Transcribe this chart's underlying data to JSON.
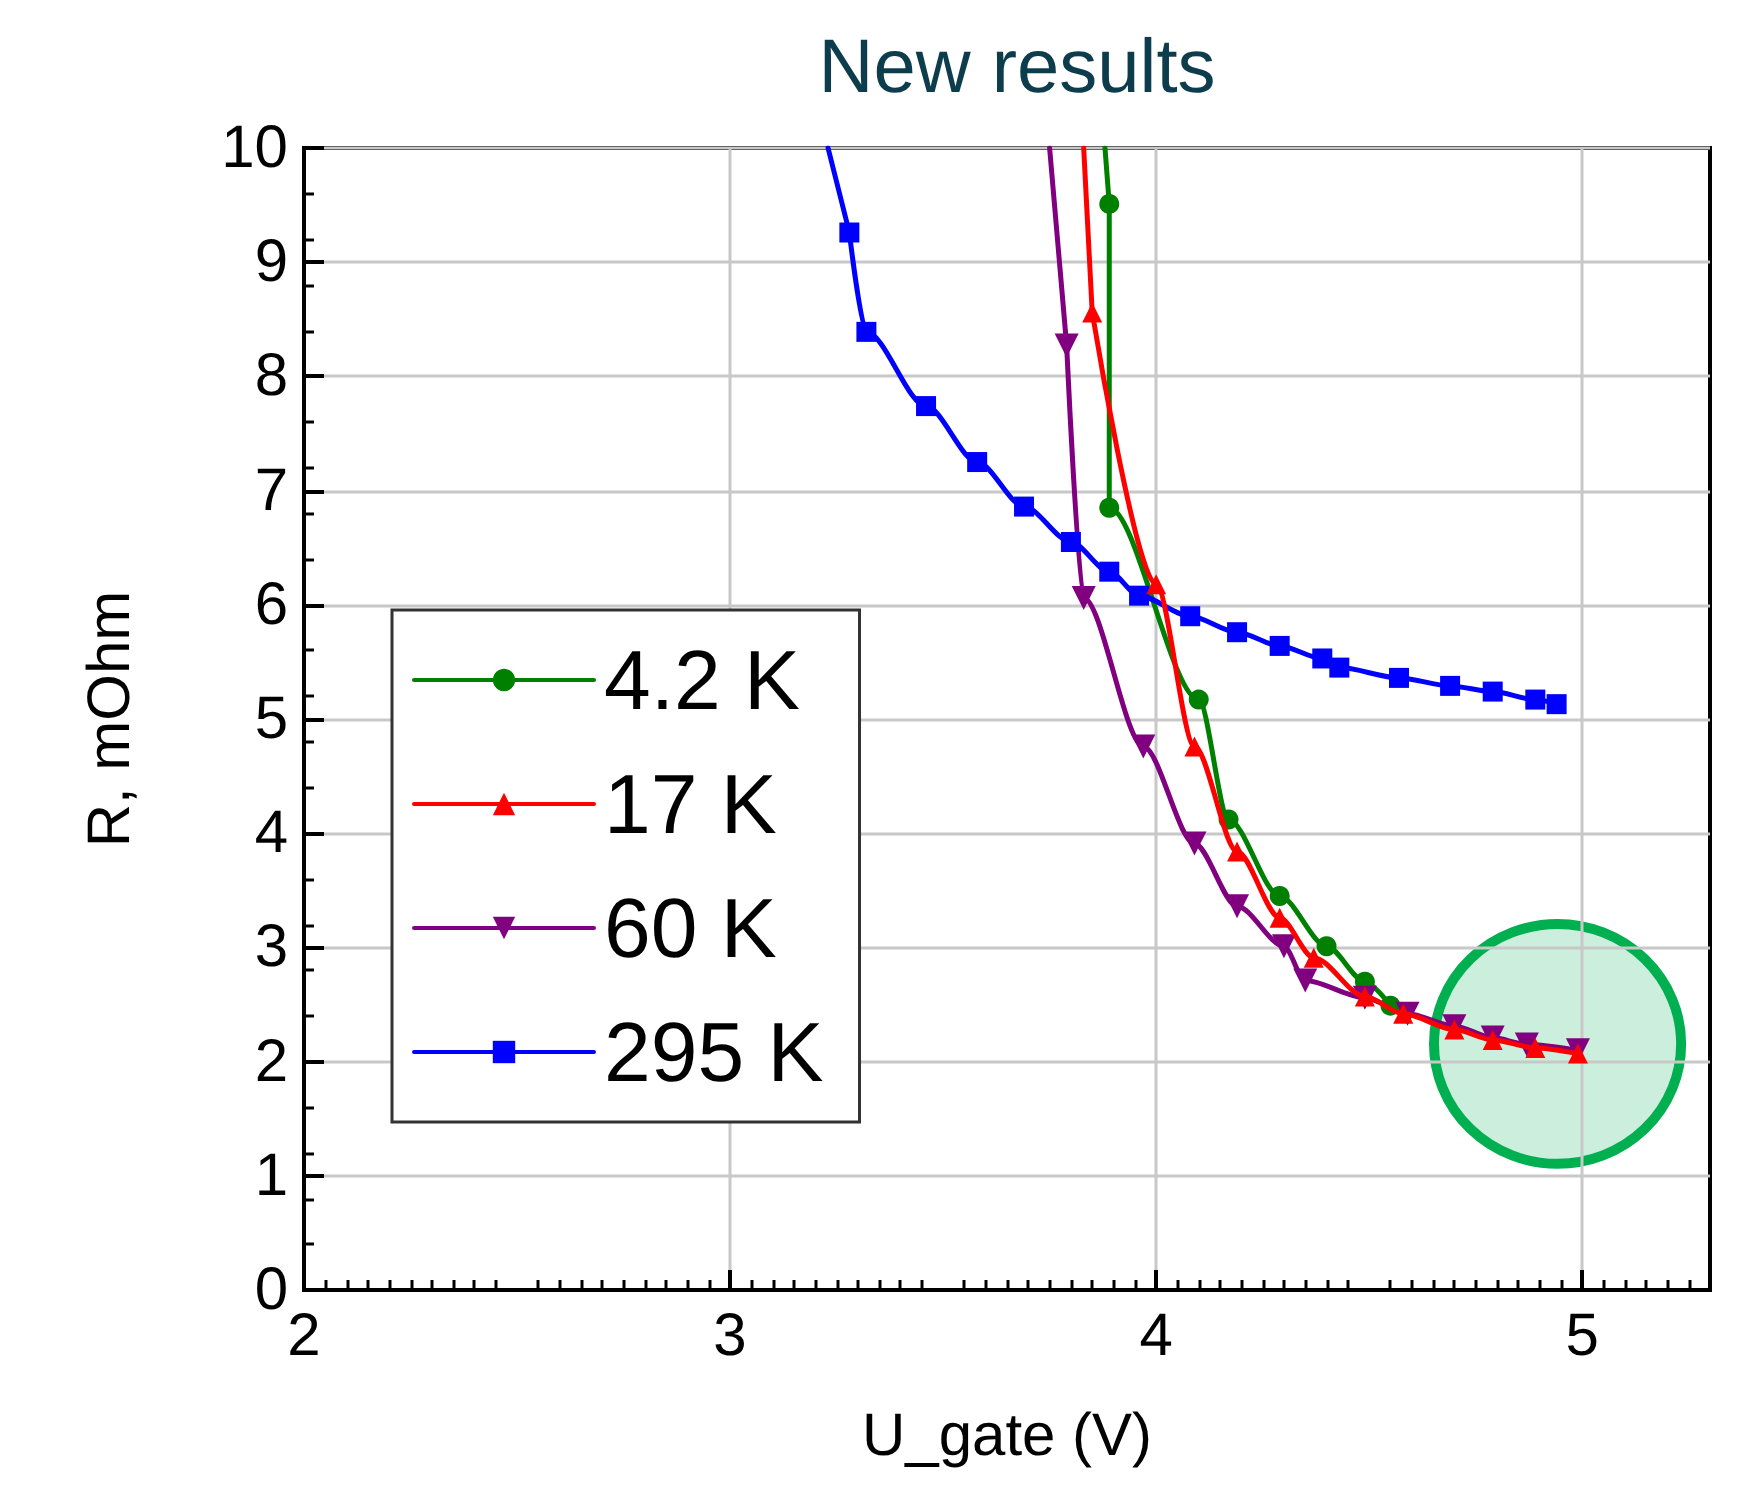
{
  "chart_data": {
    "type": "line",
    "title": "New results",
    "xlabel": "U_gate (V)",
    "ylabel": "R, mOhm",
    "xlim": [
      2,
      5.3
    ],
    "xticks": [
      2,
      3,
      4,
      5
    ],
    "ylim": [
      0,
      10
    ],
    "yticks": [
      0,
      1,
      2,
      3,
      4,
      5,
      6,
      7,
      8,
      9,
      10
    ],
    "grid": true,
    "legend": "left",
    "line_style": "solid",
    "series": [
      {
        "name": "4.2 K",
        "color": "#008000",
        "marker": "circle",
        "x": [
          3.89,
          3.89,
          4.1,
          4.17,
          4.29,
          4.4,
          4.49,
          4.55
        ],
        "values": [
          9.51,
          6.85,
          5.17,
          4.12,
          3.45,
          3.01,
          2.7,
          2.49
        ]
      },
      {
        "name": "17 K",
        "color": "#ff0000",
        "marker": "triangle",
        "x": [
          3.85,
          4.0,
          4.09,
          4.19,
          4.29,
          4.37,
          4.49,
          4.58,
          4.7,
          4.79,
          4.89,
          4.99
        ],
        "values": [
          8.56,
          6.18,
          4.76,
          3.84,
          3.26,
          2.91,
          2.57,
          2.42,
          2.28,
          2.19,
          2.12,
          2.07
        ]
      },
      {
        "name": "60 K",
        "color": "#800080",
        "marker": "triangle-down",
        "x": [
          3.79,
          3.83,
          3.97,
          4.09,
          4.19,
          4.3,
          4.35,
          4.49,
          4.59,
          4.7,
          4.79,
          4.87,
          4.99
        ],
        "values": [
          8.27,
          6.06,
          4.76,
          3.91,
          3.36,
          3.01,
          2.71,
          2.56,
          2.42,
          2.31,
          2.21,
          2.15,
          2.1
        ]
      },
      {
        "name": "295 K",
        "color": "#0000ff",
        "marker": "square",
        "x": [
          3.28,
          3.32,
          3.46,
          3.58,
          3.69,
          3.8,
          3.89,
          3.96,
          4.08,
          4.19,
          4.29,
          4.39,
          4.43,
          4.57,
          4.69,
          4.79,
          4.89,
          4.94
        ],
        "values": [
          9.26,
          8.39,
          7.74,
          7.25,
          6.86,
          6.55,
          6.29,
          6.08,
          5.9,
          5.76,
          5.64,
          5.53,
          5.45,
          5.36,
          5.29,
          5.24,
          5.17,
          5.13
        ]
      },
      {
        "type": "line",
        "color": "#008000",
        "marker": "none",
        "x": [
          3.88,
          3.89
        ],
        "values": [
          10,
          9.51
        ]
      },
      {
        "type": "line",
        "color": "#ff0000",
        "marker": "none",
        "x": [
          3.83,
          3.85
        ],
        "values": [
          10,
          8.56
        ]
      },
      {
        "type": "line",
        "color": "#800080",
        "marker": "none",
        "x": [
          3.75,
          3.79
        ],
        "values": [
          10,
          8.27
        ]
      },
      {
        "type": "line",
        "color": "#0000ff",
        "marker": "none",
        "x": [
          3.23,
          3.28
        ],
        "values": [
          10,
          9.26
        ]
      }
    ]
  }
}
